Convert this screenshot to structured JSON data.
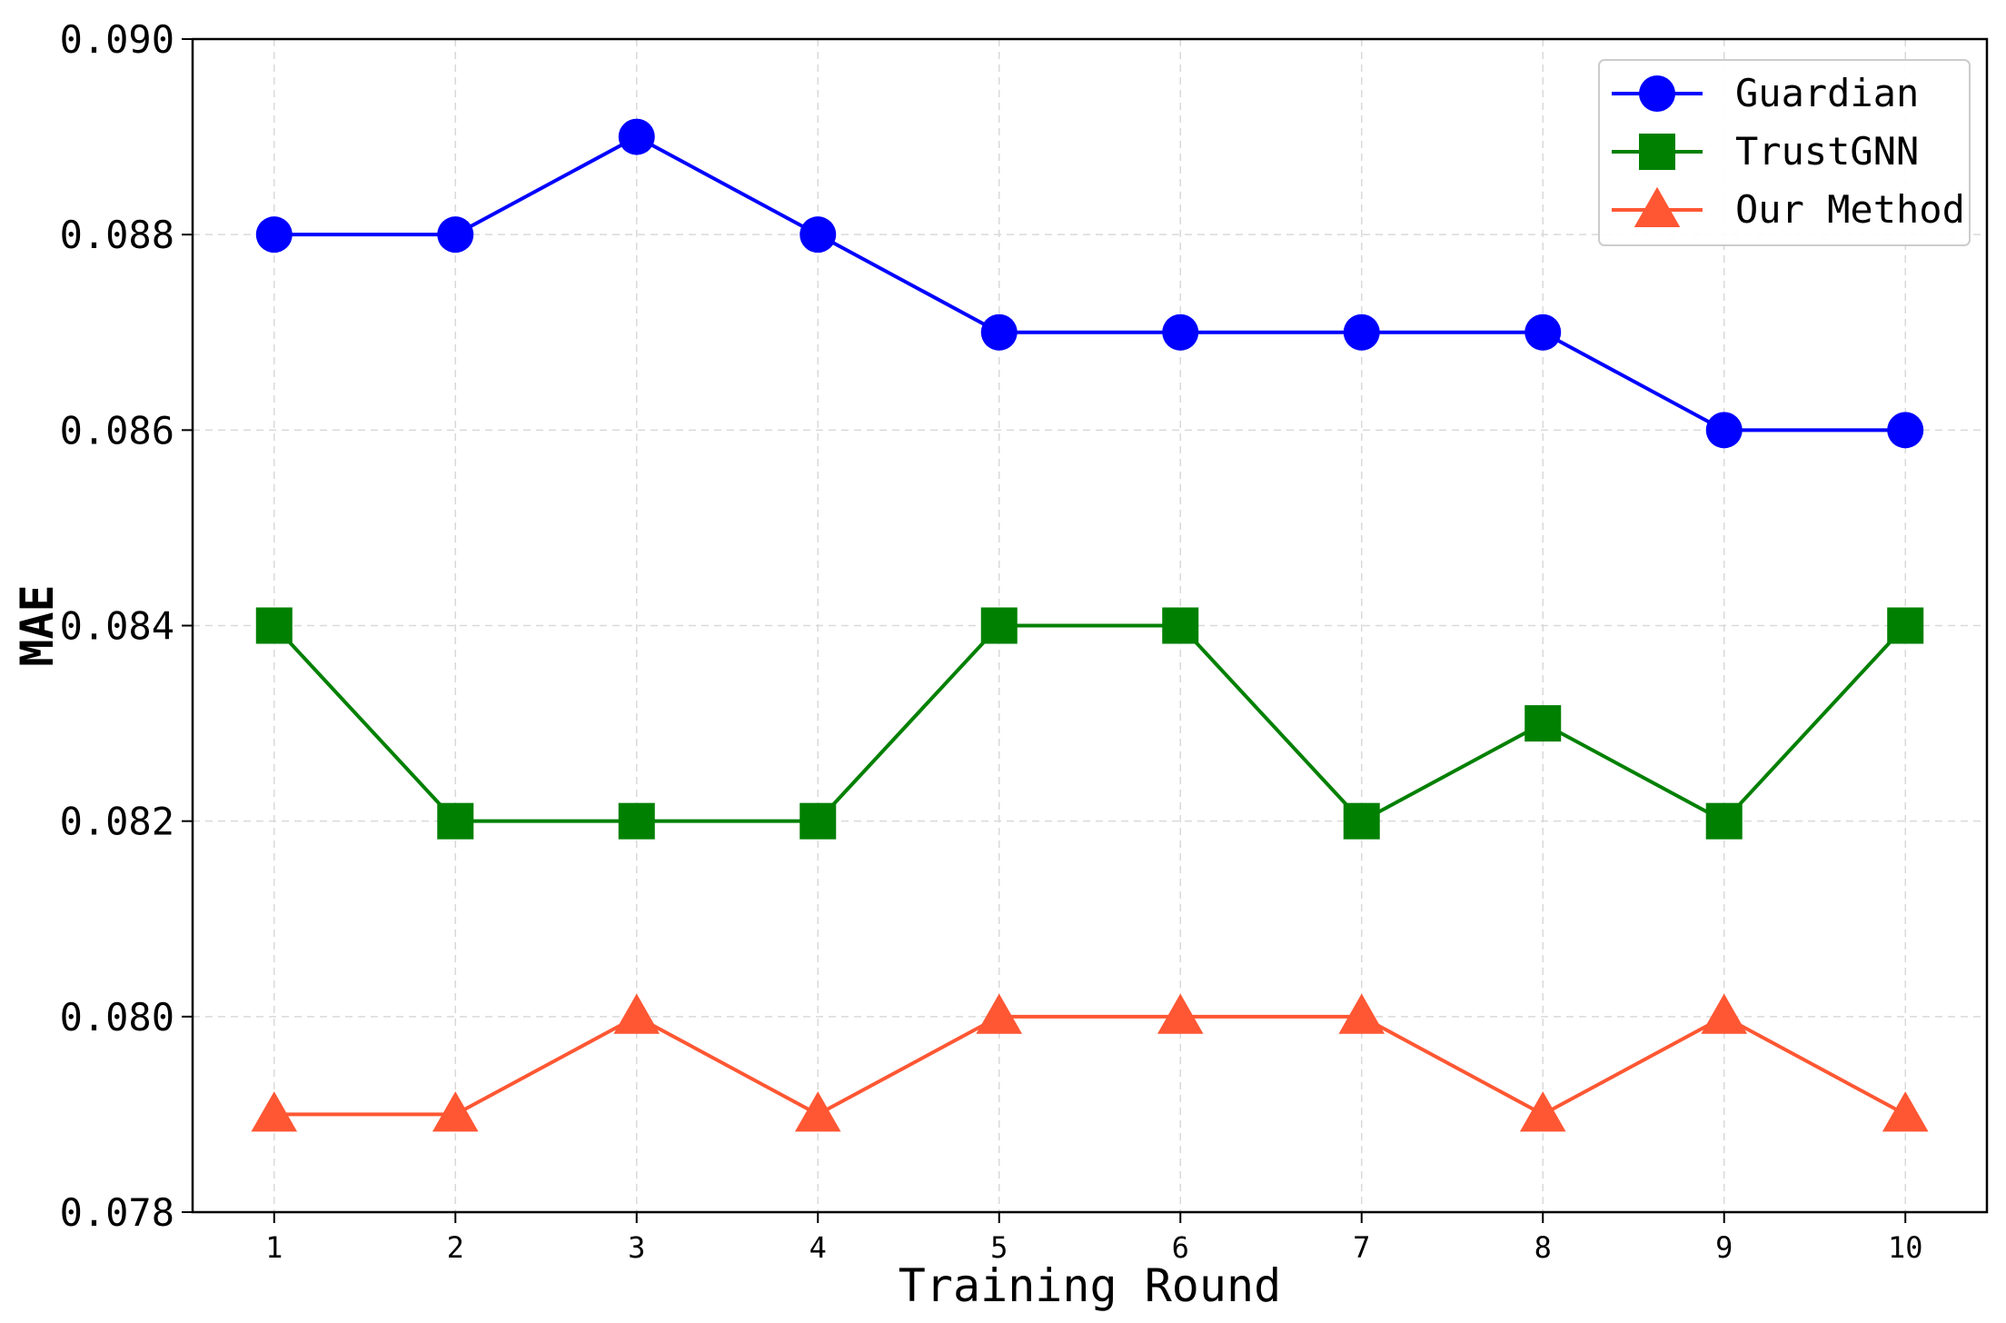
{
  "chart_data": {
    "type": "line",
    "xlabel": "Training Round",
    "ylabel": "MAE",
    "x": [
      1,
      2,
      3,
      4,
      5,
      6,
      7,
      8,
      9,
      10
    ],
    "x_tick_labels": [
      "1",
      "2",
      "3",
      "4",
      "5",
      "6",
      "7",
      "8",
      "9",
      "10"
    ],
    "y_tick_labels": [
      "0.078",
      "0.080",
      "0.082",
      "0.084",
      "0.086",
      "0.088",
      "0.090"
    ],
    "y_ticks": [
      0.078,
      0.08,
      0.082,
      0.084,
      0.086,
      0.088,
      0.09
    ],
    "ylim": [
      0.078,
      0.09
    ],
    "xlim": [
      0.55,
      10.45
    ],
    "grid": true,
    "legend_position": "top-right",
    "series": [
      {
        "name": "Guardian",
        "color": "#0000ff",
        "marker": "circle",
        "values": [
          0.088,
          0.088,
          0.089,
          0.088,
          0.087,
          0.087,
          0.087,
          0.087,
          0.086,
          0.086
        ]
      },
      {
        "name": "TrustGNN",
        "color": "#008000",
        "marker": "square",
        "values": [
          0.084,
          0.082,
          0.082,
          0.082,
          0.084,
          0.084,
          0.082,
          0.083,
          0.082,
          0.084
        ]
      },
      {
        "name": "Our Method",
        "color": "#ff5733",
        "marker": "triangle",
        "values": [
          0.079,
          0.079,
          0.08,
          0.079,
          0.08,
          0.08,
          0.08,
          0.079,
          0.08,
          0.079
        ]
      }
    ]
  }
}
